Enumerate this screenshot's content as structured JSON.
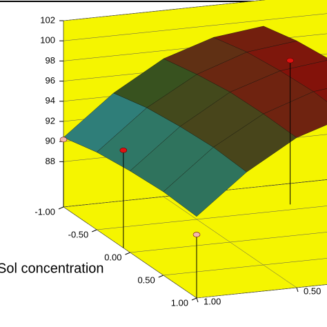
{
  "chart_data": {
    "type": "surface",
    "x_label": "Sol concentration",
    "zlim": [
      83.5,
      102
    ],
    "zticks": [
      88,
      90,
      92,
      94,
      96,
      98,
      100,
      102
    ],
    "xlim": [
      -1,
      1
    ],
    "xticks": [
      {
        "value": -1,
        "label": "-1.00"
      },
      {
        "value": -0.5,
        "label": "-0.50"
      },
      {
        "value": 0,
        "label": "0.00"
      },
      {
        "value": 0.5,
        "label": "0.50"
      },
      {
        "value": 1,
        "label": "1.00"
      }
    ],
    "ylim": [
      -1,
      1
    ],
    "yticks": [
      {
        "value": 1,
        "label": "1.00"
      },
      {
        "value": 0.5,
        "label": "0.50"
      }
    ],
    "colors": [
      "#2f9cc0",
      "#2f5a22",
      "#8a0c08"
    ],
    "wall_color": "#f5f500",
    "surface": {
      "x": [
        -1,
        -0.5,
        0,
        0.5,
        1
      ],
      "y": [
        0,
        0.25,
        0.5,
        0.75,
        1
      ],
      "z": [
        [
          99.4,
          100.2,
          100.6,
          100.8,
          100.6
        ],
        [
          98.8,
          99.6,
          100.0,
          100.2,
          100.0
        ],
        [
          97.2,
          97.9,
          98.4,
          98.5,
          98.4
        ],
        [
          94.3,
          95.1,
          95.5,
          95.7,
          95.5
        ],
        [
          90.4,
          91.2,
          91.6,
          91.8,
          91.6
        ]
      ]
    },
    "points": [
      {
        "x": -1,
        "y": 1,
        "z": 90.2,
        "color": "#f2b8b0"
      },
      {
        "x": -0.1,
        "y": 1,
        "z": 93.2,
        "color": "#e01010"
      },
      {
        "x": -0.6,
        "y": 0,
        "z": 97.8,
        "color": "#e01010"
      },
      {
        "x": 1,
        "y": 1,
        "z": 89.8,
        "color": "#f2b8b0"
      }
    ]
  }
}
